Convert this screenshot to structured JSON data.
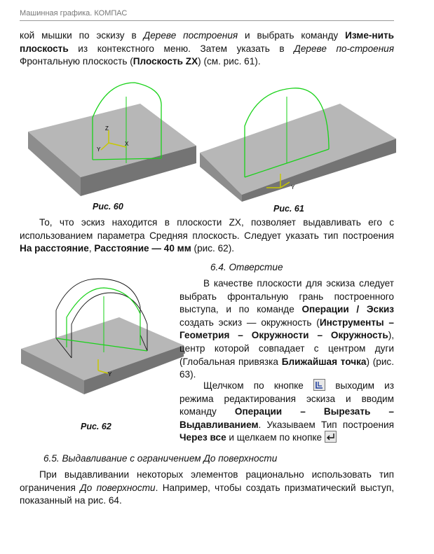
{
  "header": {
    "title": "Машинная графика. КОМПАС"
  },
  "intro": {
    "t1": "кой мышки по эскизу в ",
    "t2": "Дереве построения",
    "t3": " и выбрать команду ",
    "t4": "Изме-нить плоскость",
    "t5": " из контекстного меню. Затем указать в ",
    "t6": "Дереве по-строения",
    "t7": " Фронтальную плоскость (",
    "t8": "Плоскость ZX",
    "t9": ") (см. рис. 61)."
  },
  "figures": {
    "fig60": "Рис. 60",
    "fig61": "Рис. 61",
    "fig62": "Рис. 62",
    "ax_z": "Z",
    "ax_x": "X",
    "ax_y": "Y"
  },
  "para_zx": {
    "t1": "То, что эскиз находится в плоскости ZX, позволяет выдавливать его с использованием параметра Средняя плоскость. Следует указать тип построения ",
    "t2": "На расстояние",
    "t3": ", ",
    "t4": "Расстояние — 40 мм",
    "t5": " (рис. 62)."
  },
  "section_64": {
    "title": "6.4. Отверстие"
  },
  "para_hole": {
    "t1": "В качестве плоскости для эскиза следует выбрать фронтальную грань построенного выступа, и по команде ",
    "t2": "Операции / Эскиз",
    "t3": " создать эскиз — окружность (",
    "t4": "Инструменты – Геометрия – Окружности – Окружность",
    "t5": "), центр которой совпадает с центром дуги (Глобальная привязка ",
    "t6": "Ближайшая точка",
    "t7": ") (рис. 63)."
  },
  "para_click": {
    "t1": "Щелчком по кнопке ",
    "t2": " выходим из режима редактирования эскиза и вводим команду ",
    "t3": "Операции – Вырезать – Выдавливанием",
    "t4": ". Указываем Тип построения ",
    "t5": "Через все",
    "t6": " и щелкаем по кнопке "
  },
  "section_65": {
    "title": "6.5. Выдавливание с ограничением До поверхности"
  },
  "para_last": {
    "t1": "При выдавливании некоторых элементов рационально использовать тип ограничения ",
    "t2": "До поверхности",
    "t3": ". Например, чтобы создать призматический выступ, показанный на рис. 64."
  },
  "icons": {
    "exit_sketch": "sketch-exit-icon",
    "enter_key": "enter-arrow-icon"
  },
  "colors": {
    "slab_top": "#b7b7b7",
    "slab_front": "#8d8d8d",
    "slab_side": "#747474",
    "sketch_green": "#19d219",
    "axis_yellow": "#c8c800"
  }
}
